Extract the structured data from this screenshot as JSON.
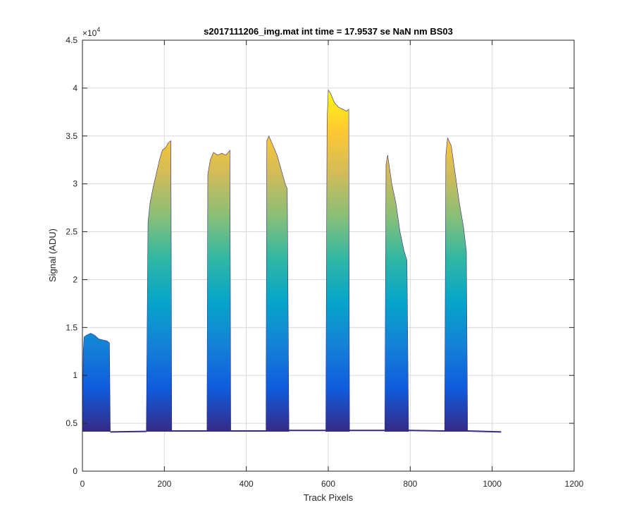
{
  "chart_data": {
    "type": "area",
    "title": "s2017111206_img.mat int time = 17.9537 se  NaN nm BS03",
    "xlabel": "Track Pixels",
    "ylabel": "Signal (ADU)",
    "xlim": [
      0,
      1200
    ],
    "ylim": [
      0,
      45000
    ],
    "x_ticks": [
      0,
      200,
      400,
      600,
      800,
      1000,
      1200
    ],
    "y_ticks": [
      0,
      5000,
      10000,
      15000,
      20000,
      25000,
      30000,
      35000,
      40000,
      45000
    ],
    "x_tick_labels": [
      "0",
      "200",
      "400",
      "600",
      "800",
      "1000",
      "1200"
    ],
    "y_tick_labels": [
      "0",
      "0.5",
      "1",
      "1.5",
      "2",
      "2.5",
      "3",
      "3.5",
      "4",
      "4.5"
    ],
    "y_exponent": "×10",
    "y_exponent_power": "4",
    "grid": true,
    "colormap": [
      "#352a87",
      "#0f5cdd",
      "#1481d6",
      "#06a4ca",
      "#2eb7a4",
      "#87bf77",
      "#d1bb59",
      "#fec832",
      "#f9fb0e"
    ],
    "baseline": 4150,
    "bands": [
      {
        "x": [
          0,
          2,
          4,
          10,
          20,
          30,
          40,
          50,
          60,
          66,
          68
        ],
        "y": [
          4200,
          12500,
          14000,
          14200,
          14400,
          14200,
          13800,
          13700,
          13600,
          13400,
          4200
        ]
      },
      {
        "x": [
          156,
          160,
          165,
          172,
          180,
          188,
          195,
          203,
          210,
          216,
          218
        ],
        "y": [
          4300,
          26000,
          28000,
          29500,
          31000,
          32500,
          33500,
          33800,
          34300,
          34500,
          4300
        ]
      },
      {
        "x": [
          304,
          306,
          312,
          320,
          330,
          340,
          350,
          360,
          362
        ],
        "y": [
          4300,
          31000,
          32500,
          33300,
          33000,
          33200,
          33000,
          33500,
          4300
        ]
      },
      {
        "x": [
          448,
          450,
          455,
          465,
          475,
          485,
          495,
          500,
          504
        ],
        "y": [
          4300,
          34500,
          35000,
          34000,
          33000,
          31500,
          30000,
          29500,
          4300
        ]
      },
      {
        "x": [
          594,
          597,
          600,
          605,
          615,
          625,
          635,
          645,
          650,
          652
        ],
        "y": [
          4300,
          36500,
          39800,
          39500,
          38500,
          38000,
          37800,
          37600,
          37800,
          4300
        ]
      },
      {
        "x": [
          738,
          741,
          745,
          755,
          765,
          775,
          785,
          792,
          796
        ],
        "y": [
          4300,
          32000,
          33000,
          30000,
          28000,
          25000,
          23000,
          22000,
          4300
        ]
      },
      {
        "x": [
          884,
          887,
          891,
          900,
          910,
          920,
          930,
          937,
          940
        ],
        "y": [
          4300,
          33000,
          34800,
          34000,
          31000,
          28000,
          25500,
          23000,
          4300
        ]
      }
    ],
    "baseline_segments": [
      {
        "x": [
          68,
          156
        ],
        "y": [
          4100,
          4150
        ]
      },
      {
        "x": [
          218,
          304
        ],
        "y": [
          4200,
          4200
        ]
      },
      {
        "x": [
          362,
          448
        ],
        "y": [
          4200,
          4200
        ]
      },
      {
        "x": [
          504,
          594
        ],
        "y": [
          4250,
          4250
        ]
      },
      {
        "x": [
          652,
          738
        ],
        "y": [
          4250,
          4250
        ]
      },
      {
        "x": [
          796,
          884
        ],
        "y": [
          4250,
          4200
        ]
      },
      {
        "x": [
          940,
          1022
        ],
        "y": [
          4200,
          4100
        ]
      }
    ]
  }
}
